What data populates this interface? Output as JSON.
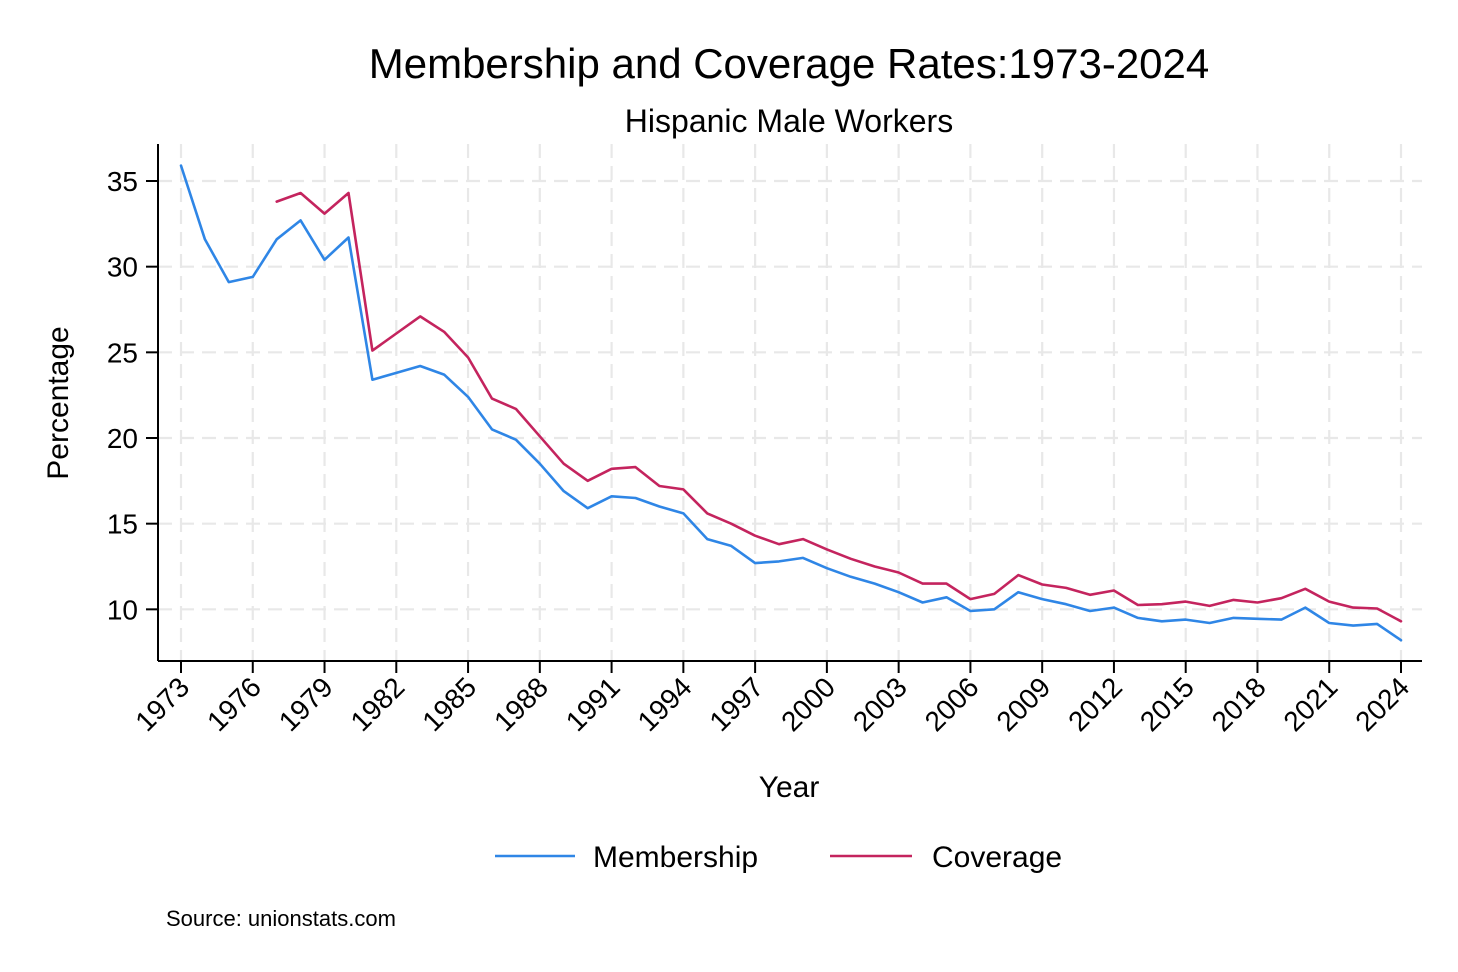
{
  "chart_data": {
    "type": "line",
    "title": "Membership and Coverage Rates:1973-2024",
    "subtitle": "Hispanic Male Workers",
    "xlabel": "Year",
    "ylabel": "Percentage",
    "xlim": [
      1973,
      2024
    ],
    "ylim": [
      8,
      37
    ],
    "x_ticks": [
      1973,
      1976,
      1979,
      1982,
      1985,
      1988,
      1991,
      1994,
      1997,
      2000,
      2003,
      2006,
      2009,
      2012,
      2015,
      2018,
      2021,
      2024
    ],
    "y_ticks": [
      10,
      15,
      20,
      25,
      30,
      35
    ],
    "grid": true,
    "legend_position": "bottom",
    "source": "Source: unionstats.com",
    "series": [
      {
        "name": "Membership",
        "color": "#2f86e6",
        "x": [
          1973,
          1974,
          1975,
          1976,
          1977,
          1978,
          1979,
          1980,
          1981,
          1982,
          1983,
          1984,
          1985,
          1986,
          1987,
          1988,
          1989,
          1990,
          1991,
          1992,
          1993,
          1994,
          1995,
          1996,
          1997,
          1998,
          1999,
          2000,
          2001,
          2002,
          2003,
          2004,
          2005,
          2006,
          2007,
          2008,
          2009,
          2010,
          2011,
          2012,
          2013,
          2014,
          2015,
          2016,
          2017,
          2018,
          2019,
          2020,
          2021,
          2022,
          2023,
          2024
        ],
        "values": [
          35.9,
          31.6,
          29.1,
          29.4,
          31.6,
          32.7,
          30.4,
          31.7,
          23.4,
          23.8,
          24.2,
          23.7,
          22.4,
          20.5,
          19.9,
          18.5,
          16.9,
          15.9,
          16.6,
          16.5,
          16.0,
          15.6,
          14.1,
          13.7,
          12.7,
          12.8,
          13.0,
          12.4,
          11.9,
          11.5,
          11.0,
          10.4,
          10.7,
          9.9,
          10.0,
          11.0,
          10.6,
          10.3,
          9.9,
          10.1,
          9.5,
          9.3,
          9.4,
          9.2,
          9.5,
          9.45,
          9.4,
          10.1,
          9.2,
          9.05,
          9.15,
          8.2
        ]
      },
      {
        "name": "Coverage",
        "color": "#c4245e",
        "x": [
          1977,
          1978,
          1979,
          1980,
          1981,
          1982,
          1983,
          1984,
          1985,
          1986,
          1987,
          1988,
          1989,
          1990,
          1991,
          1992,
          1993,
          1994,
          1995,
          1996,
          1997,
          1998,
          1999,
          2000,
          2001,
          2002,
          2003,
          2004,
          2005,
          2006,
          2007,
          2008,
          2009,
          2010,
          2011,
          2012,
          2013,
          2014,
          2015,
          2016,
          2017,
          2018,
          2019,
          2020,
          2021,
          2022,
          2023,
          2024
        ],
        "values": [
          33.8,
          34.3,
          33.1,
          34.3,
          25.1,
          26.1,
          27.1,
          26.2,
          24.7,
          22.3,
          21.7,
          20.1,
          18.5,
          17.5,
          18.2,
          18.3,
          17.2,
          17.0,
          15.6,
          15.0,
          14.3,
          13.8,
          14.1,
          13.5,
          12.95,
          12.5,
          12.15,
          11.5,
          11.5,
          10.6,
          10.9,
          12.0,
          11.45,
          11.25,
          10.85,
          11.1,
          10.25,
          10.3,
          10.45,
          10.2,
          10.55,
          10.4,
          10.65,
          11.2,
          10.45,
          10.1,
          10.05,
          9.3
        ]
      }
    ]
  }
}
